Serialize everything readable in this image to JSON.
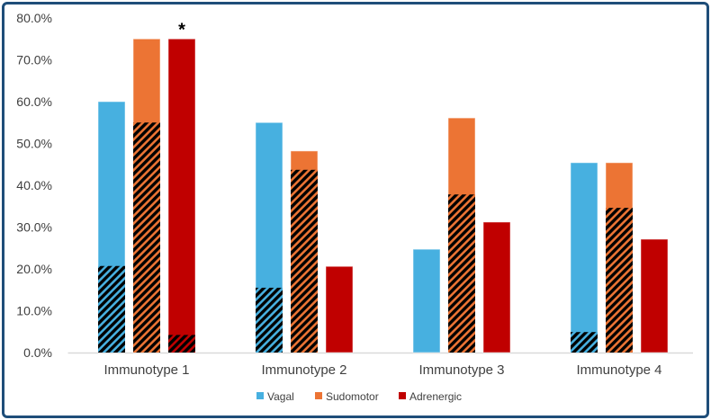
{
  "chart_data": {
    "type": "bar",
    "title": "",
    "xlabel": "",
    "ylabel": "",
    "ylim": [
      0,
      80
    ],
    "yticks": [
      "0.0%",
      "10.0%",
      "20.0%",
      "30.0%",
      "40.0%",
      "50.0%",
      "60.0%",
      "70.0%",
      "80.0%"
    ],
    "categories": [
      "Immunotype 1",
      "Immunotype 2",
      "Immunotype 3",
      "Immunotype 4"
    ],
    "series": [
      {
        "name": "Vagal",
        "color": "#47b0e0",
        "values": [
          60.0,
          55.0,
          24.7,
          45.4
        ],
        "hatched_values": [
          20.7,
          15.5,
          0,
          4.9
        ]
      },
      {
        "name": "Sudomotor",
        "color": "#ec7434",
        "values": [
          75.0,
          48.2,
          56.1,
          45.4
        ],
        "hatched_values": [
          55.0,
          43.7,
          37.8,
          34.6
        ]
      },
      {
        "name": "Adrenergic",
        "color": "#c00000",
        "values": [
          75.0,
          20.6,
          31.2,
          27.1
        ],
        "hatched_values": [
          4.2,
          0,
          0,
          0
        ]
      }
    ],
    "annotations": [
      {
        "text": "*",
        "category": "Immunotype 1",
        "series": "Adrenergic"
      }
    ],
    "legend": "bottom",
    "grid": false
  }
}
